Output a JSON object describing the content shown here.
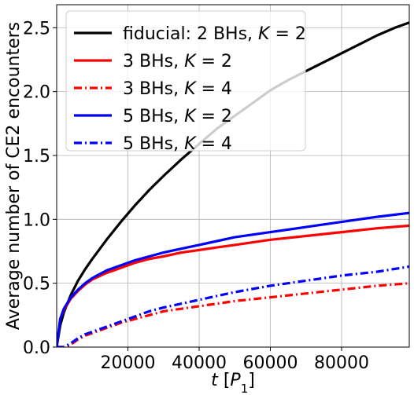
{
  "chart_data": {
    "type": "line",
    "xlabel_main": "t",
    "xlabel_unit_prefix": "[",
    "xlabel_unit_symbol": "P",
    "xlabel_unit_subscript": "1",
    "xlabel_unit_suffix": "]",
    "ylabel": "Average number of CE2 encounters",
    "xlim": [
      0,
      99000
    ],
    "ylim": [
      0,
      2.68
    ],
    "xticks": [
      20000,
      40000,
      60000,
      80000
    ],
    "yticks": [
      0.0,
      0.5,
      1.0,
      1.5,
      2.0,
      2.5
    ],
    "xtick_labels": [
      "20000",
      "40000",
      "60000",
      "80000"
    ],
    "ytick_labels": [
      "0.0",
      "0.5",
      "1.0",
      "1.5",
      "2.0",
      "2.5"
    ],
    "grid": true,
    "legend_placement": "top-left",
    "series": [
      {
        "legend_prefix": "fiducial: 2 BHs, ",
        "legend_var": "K",
        "legend_eq": " = 2",
        "color": "#000000",
        "style": "solid",
        "x": [
          0,
          1000,
          2000,
          4000,
          6000,
          8000,
          10000,
          14000,
          18000,
          22000,
          26000,
          30000,
          35000,
          40000,
          45000,
          50000,
          55000,
          60000,
          65000,
          70000,
          75000,
          80000,
          85000,
          90000,
          95000,
          99000
        ],
        "y": [
          0,
          0.17,
          0.27,
          0.41,
          0.52,
          0.61,
          0.69,
          0.84,
          0.98,
          1.11,
          1.23,
          1.34,
          1.47,
          1.59,
          1.71,
          1.81,
          1.91,
          2.01,
          2.09,
          2.16,
          2.23,
          2.3,
          2.37,
          2.44,
          2.5,
          2.54
        ]
      },
      {
        "legend_prefix": "3 BHs, ",
        "legend_var": "K",
        "legend_eq": " = 2",
        "color": "#ff0000",
        "style": "solid",
        "x": [
          0,
          1000,
          2000,
          4000,
          6000,
          8000,
          10000,
          14000,
          18000,
          22000,
          26000,
          30000,
          35000,
          40000,
          45000,
          50000,
          60000,
          70000,
          80000,
          90000,
          99000
        ],
        "y": [
          0,
          0.22,
          0.29,
          0.38,
          0.44,
          0.49,
          0.53,
          0.58,
          0.62,
          0.66,
          0.69,
          0.71,
          0.74,
          0.76,
          0.78,
          0.8,
          0.84,
          0.87,
          0.9,
          0.93,
          0.95
        ]
      },
      {
        "legend_prefix": "3 BHs, ",
        "legend_var": "K",
        "legend_eq": " = 4",
        "color": "#ff0000",
        "style": "dashdot",
        "x": [
          0,
          2000,
          4000,
          6000,
          8000,
          10000,
          14000,
          18000,
          22000,
          26000,
          30000,
          35000,
          40000,
          45000,
          50000,
          60000,
          70000,
          80000,
          90000,
          99000
        ],
        "y": [
          0,
          0.0,
          0.02,
          0.06,
          0.09,
          0.11,
          0.15,
          0.19,
          0.22,
          0.25,
          0.28,
          0.3,
          0.32,
          0.34,
          0.36,
          0.39,
          0.42,
          0.45,
          0.48,
          0.5
        ]
      },
      {
        "legend_prefix": "5 BHs, ",
        "legend_var": "K",
        "legend_eq": " = 2",
        "color": "#0000ff",
        "style": "solid",
        "x": [
          0,
          1000,
          2000,
          4000,
          6000,
          8000,
          10000,
          14000,
          18000,
          22000,
          26000,
          30000,
          35000,
          40000,
          45000,
          50000,
          60000,
          70000,
          80000,
          90000,
          99000
        ],
        "y": [
          0,
          0.22,
          0.3,
          0.39,
          0.45,
          0.5,
          0.54,
          0.6,
          0.64,
          0.68,
          0.71,
          0.74,
          0.77,
          0.8,
          0.83,
          0.86,
          0.9,
          0.94,
          0.98,
          1.02,
          1.05
        ]
      },
      {
        "legend_prefix": "5 BHs, ",
        "legend_var": "K",
        "legend_eq": " = 4",
        "color": "#0000ff",
        "style": "dashdot",
        "x": [
          0,
          2000,
          4000,
          6000,
          8000,
          10000,
          14000,
          18000,
          22000,
          26000,
          30000,
          35000,
          40000,
          45000,
          50000,
          60000,
          70000,
          80000,
          90000,
          99000
        ],
        "y": [
          0,
          0.0,
          0.03,
          0.07,
          0.1,
          0.12,
          0.16,
          0.2,
          0.24,
          0.28,
          0.31,
          0.34,
          0.37,
          0.4,
          0.43,
          0.48,
          0.52,
          0.56,
          0.59,
          0.63
        ]
      }
    ]
  }
}
